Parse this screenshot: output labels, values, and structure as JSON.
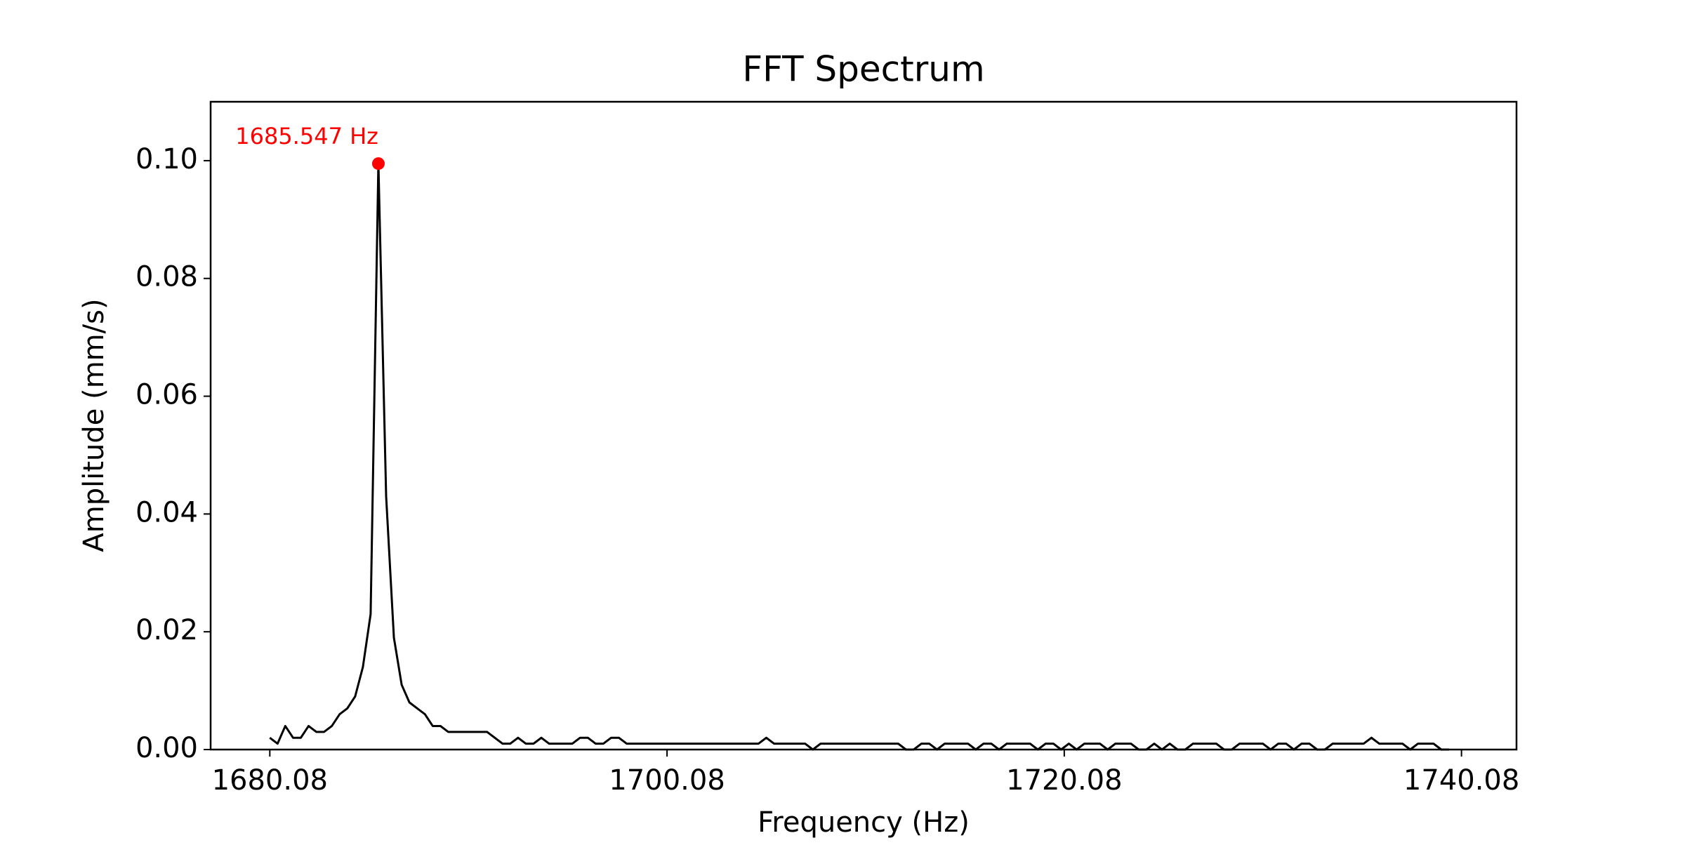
{
  "chart_data": {
    "type": "line",
    "title": "FFT Spectrum",
    "x_label": "Frequency (Hz)",
    "y_label": "Amplitude (mm/s)",
    "xlim": [
      1677.1,
      1742.85
    ],
    "ylim": [
      0,
      0.11
    ],
    "xticks": [
      1680.08,
      1700.08,
      1720.08,
      1740.08
    ],
    "yticks": [
      {
        "value": 0,
        "label": "0.00"
      },
      0.02,
      0.04,
      0.06,
      0.08,
      {
        "value": 0.1,
        "label": "0.10"
      }
    ],
    "grid": false,
    "x": [
      1680.078,
      1680.469,
      1680.859,
      1681.25,
      1681.641,
      1682.031,
      1682.422,
      1682.812,
      1683.203,
      1683.594,
      1683.984,
      1684.375,
      1684.766,
      1685.156,
      1685.547,
      1685.937,
      1686.328,
      1686.719,
      1687.109,
      1687.5,
      1687.891,
      1688.281,
      1688.672,
      1689.062,
      1689.453,
      1689.844,
      1690.234,
      1690.625,
      1691.016,
      1691.406,
      1691.797,
      1692.187,
      1692.578,
      1692.969,
      1693.359,
      1693.75,
      1694.141,
      1694.531,
      1694.922,
      1695.312,
      1695.703,
      1696.094,
      1696.484,
      1696.875,
      1697.266,
      1697.656,
      1698.047,
      1698.437,
      1698.828,
      1699.219,
      1699.609,
      1700.0,
      1700.391,
      1700.781,
      1701.172,
      1701.562,
      1701.953,
      1702.344,
      1702.734,
      1703.125,
      1703.516,
      1703.906,
      1704.297,
      1704.687,
      1705.078,
      1705.469,
      1705.859,
      1706.25,
      1706.641,
      1707.031,
      1707.422,
      1707.812,
      1708.203,
      1708.594,
      1708.984,
      1709.375,
      1709.766,
      1710.156,
      1710.547,
      1710.937,
      1711.328,
      1711.719,
      1712.109,
      1712.5,
      1712.891,
      1713.281,
      1713.672,
      1714.062,
      1714.453,
      1714.844,
      1715.234,
      1715.625,
      1716.016,
      1716.406,
      1716.797,
      1717.187,
      1717.578,
      1717.969,
      1718.359,
      1718.75,
      1719.141,
      1719.531,
      1719.922,
      1720.312,
      1720.703,
      1721.094,
      1721.484,
      1721.875,
      1722.266,
      1722.656,
      1723.047,
      1723.437,
      1723.828,
      1724.219,
      1724.609,
      1725.0,
      1725.391,
      1725.781,
      1726.172,
      1726.562,
      1726.953,
      1727.344,
      1727.734,
      1728.125,
      1728.516,
      1728.906,
      1729.297,
      1729.687,
      1730.078,
      1730.469,
      1730.859,
      1731.25,
      1731.641,
      1732.031,
      1732.422,
      1732.812,
      1733.203,
      1733.594,
      1733.984,
      1734.375,
      1734.766,
      1735.156,
      1735.547,
      1735.937,
      1736.328,
      1736.719,
      1737.109,
      1737.5,
      1737.891,
      1738.281,
      1738.672,
      1739.062,
      1739.453
    ],
    "series": [
      {
        "color": "#000000",
        "values": [
          0.002,
          0.001,
          0.004,
          0.002,
          0.002,
          0.004,
          0.003,
          0.003,
          0.004,
          0.006,
          0.007,
          0.009,
          0.014,
          0.023,
          0.0995,
          0.043,
          0.019,
          0.011,
          0.008,
          0.007,
          0.006,
          0.004,
          0.004,
          0.003,
          0.003,
          0.003,
          0.003,
          0.003,
          0.003,
          0.002,
          0.001,
          0.001,
          0.002,
          0.001,
          0.001,
          0.002,
          0.001,
          0.001,
          0.001,
          0.001,
          0.002,
          0.002,
          0.001,
          0.001,
          0.002,
          0.002,
          0.001,
          0.001,
          0.001,
          0.001,
          0.001,
          0.001,
          0.001,
          0.001,
          0.001,
          0.001,
          0.001,
          0.001,
          0.001,
          0.001,
          0.001,
          0.001,
          0.001,
          0.001,
          0.002,
          0.001,
          0.001,
          0.001,
          0.001,
          0.001,
          0,
          0.001,
          0.001,
          0.001,
          0.001,
          0.001,
          0.001,
          0.001,
          0.001,
          0.001,
          0.001,
          0.001,
          0,
          0,
          0.001,
          0.001,
          0,
          0.001,
          0.001,
          0.001,
          0.001,
          0,
          0.001,
          0.001,
          0,
          0.001,
          0.001,
          0.001,
          0.001,
          0,
          0.001,
          0.001,
          0,
          0.001,
          0,
          0.001,
          0.001,
          0.001,
          0,
          0.001,
          0.001,
          0.001,
          0,
          0,
          0.001,
          0,
          0.001,
          0,
          0,
          0.001,
          0.001,
          0.001,
          0.001,
          0,
          0,
          0.001,
          0.001,
          0.001,
          0.001,
          0,
          0.001,
          0.001,
          0,
          0.001,
          0.001,
          0,
          0,
          0.001,
          0.001,
          0.001,
          0.001,
          0.001,
          0.002,
          0.001,
          0.001,
          0.001,
          0.001,
          0,
          0.001,
          0.001,
          0.001,
          0,
          0
        ]
      }
    ],
    "peak": {
      "label": "1685.547 Hz",
      "x": 1685.547,
      "y": 0.0995,
      "color": "#ff0000"
    }
  }
}
